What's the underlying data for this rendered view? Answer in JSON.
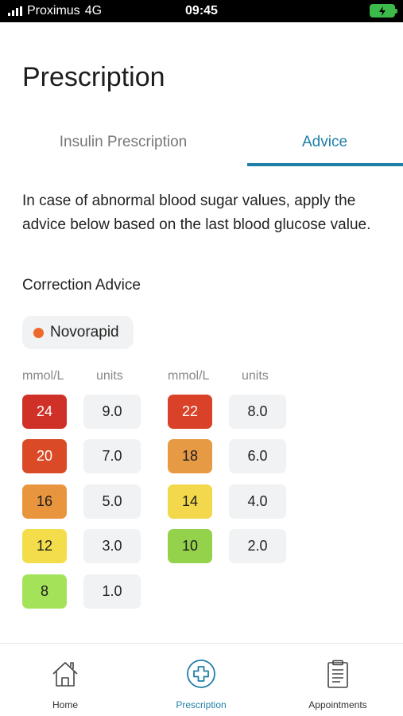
{
  "status_bar": {
    "carrier": "Proximus",
    "network": "4G",
    "time": "09:45"
  },
  "page_title": "Prescription",
  "tabs": [
    {
      "label": "Insulin Prescription",
      "active": false
    },
    {
      "label": "Advice",
      "active": true
    }
  ],
  "intro_text": "In case of abnormal blood sugar values, apply the advice below based on the last blood glucose value.",
  "section_label": "Correction Advice",
  "insulin": {
    "name": "Novorapid",
    "dot_color": "#ee6a2c"
  },
  "table": {
    "headers": {
      "mmol": "mmol/L",
      "units": "units"
    },
    "left_column": [
      {
        "mmol": "24",
        "units": "9.0",
        "color": "#cf3128"
      },
      {
        "mmol": "20",
        "units": "7.0",
        "color": "#db4a27"
      },
      {
        "mmol": "16",
        "units": "5.0",
        "color": "#e8953e"
      },
      {
        "mmol": "12",
        "units": "3.0",
        "color": "#f3dd4b"
      },
      {
        "mmol": "8",
        "units": "1.0",
        "color": "#a4e25a"
      }
    ],
    "right_column": [
      {
        "mmol": "22",
        "units": "8.0",
        "color": "#d94228"
      },
      {
        "mmol": "18",
        "units": "6.0",
        "color": "#e69a44"
      },
      {
        "mmol": "14",
        "units": "4.0",
        "color": "#f2d84a"
      },
      {
        "mmol": "10",
        "units": "2.0",
        "color": "#93d24a"
      }
    ]
  },
  "bottom_nav": [
    {
      "label": "Home",
      "icon": "house-icon",
      "active": false
    },
    {
      "label": "Prescription",
      "icon": "medical-cross-icon",
      "active": true
    },
    {
      "label": "Appointments",
      "icon": "clipboard-icon",
      "active": false
    }
  ],
  "colors": {
    "accent": "#1f7fa8",
    "cell_bg": "#f1f2f4",
    "battery": "#3dbb4a"
  }
}
